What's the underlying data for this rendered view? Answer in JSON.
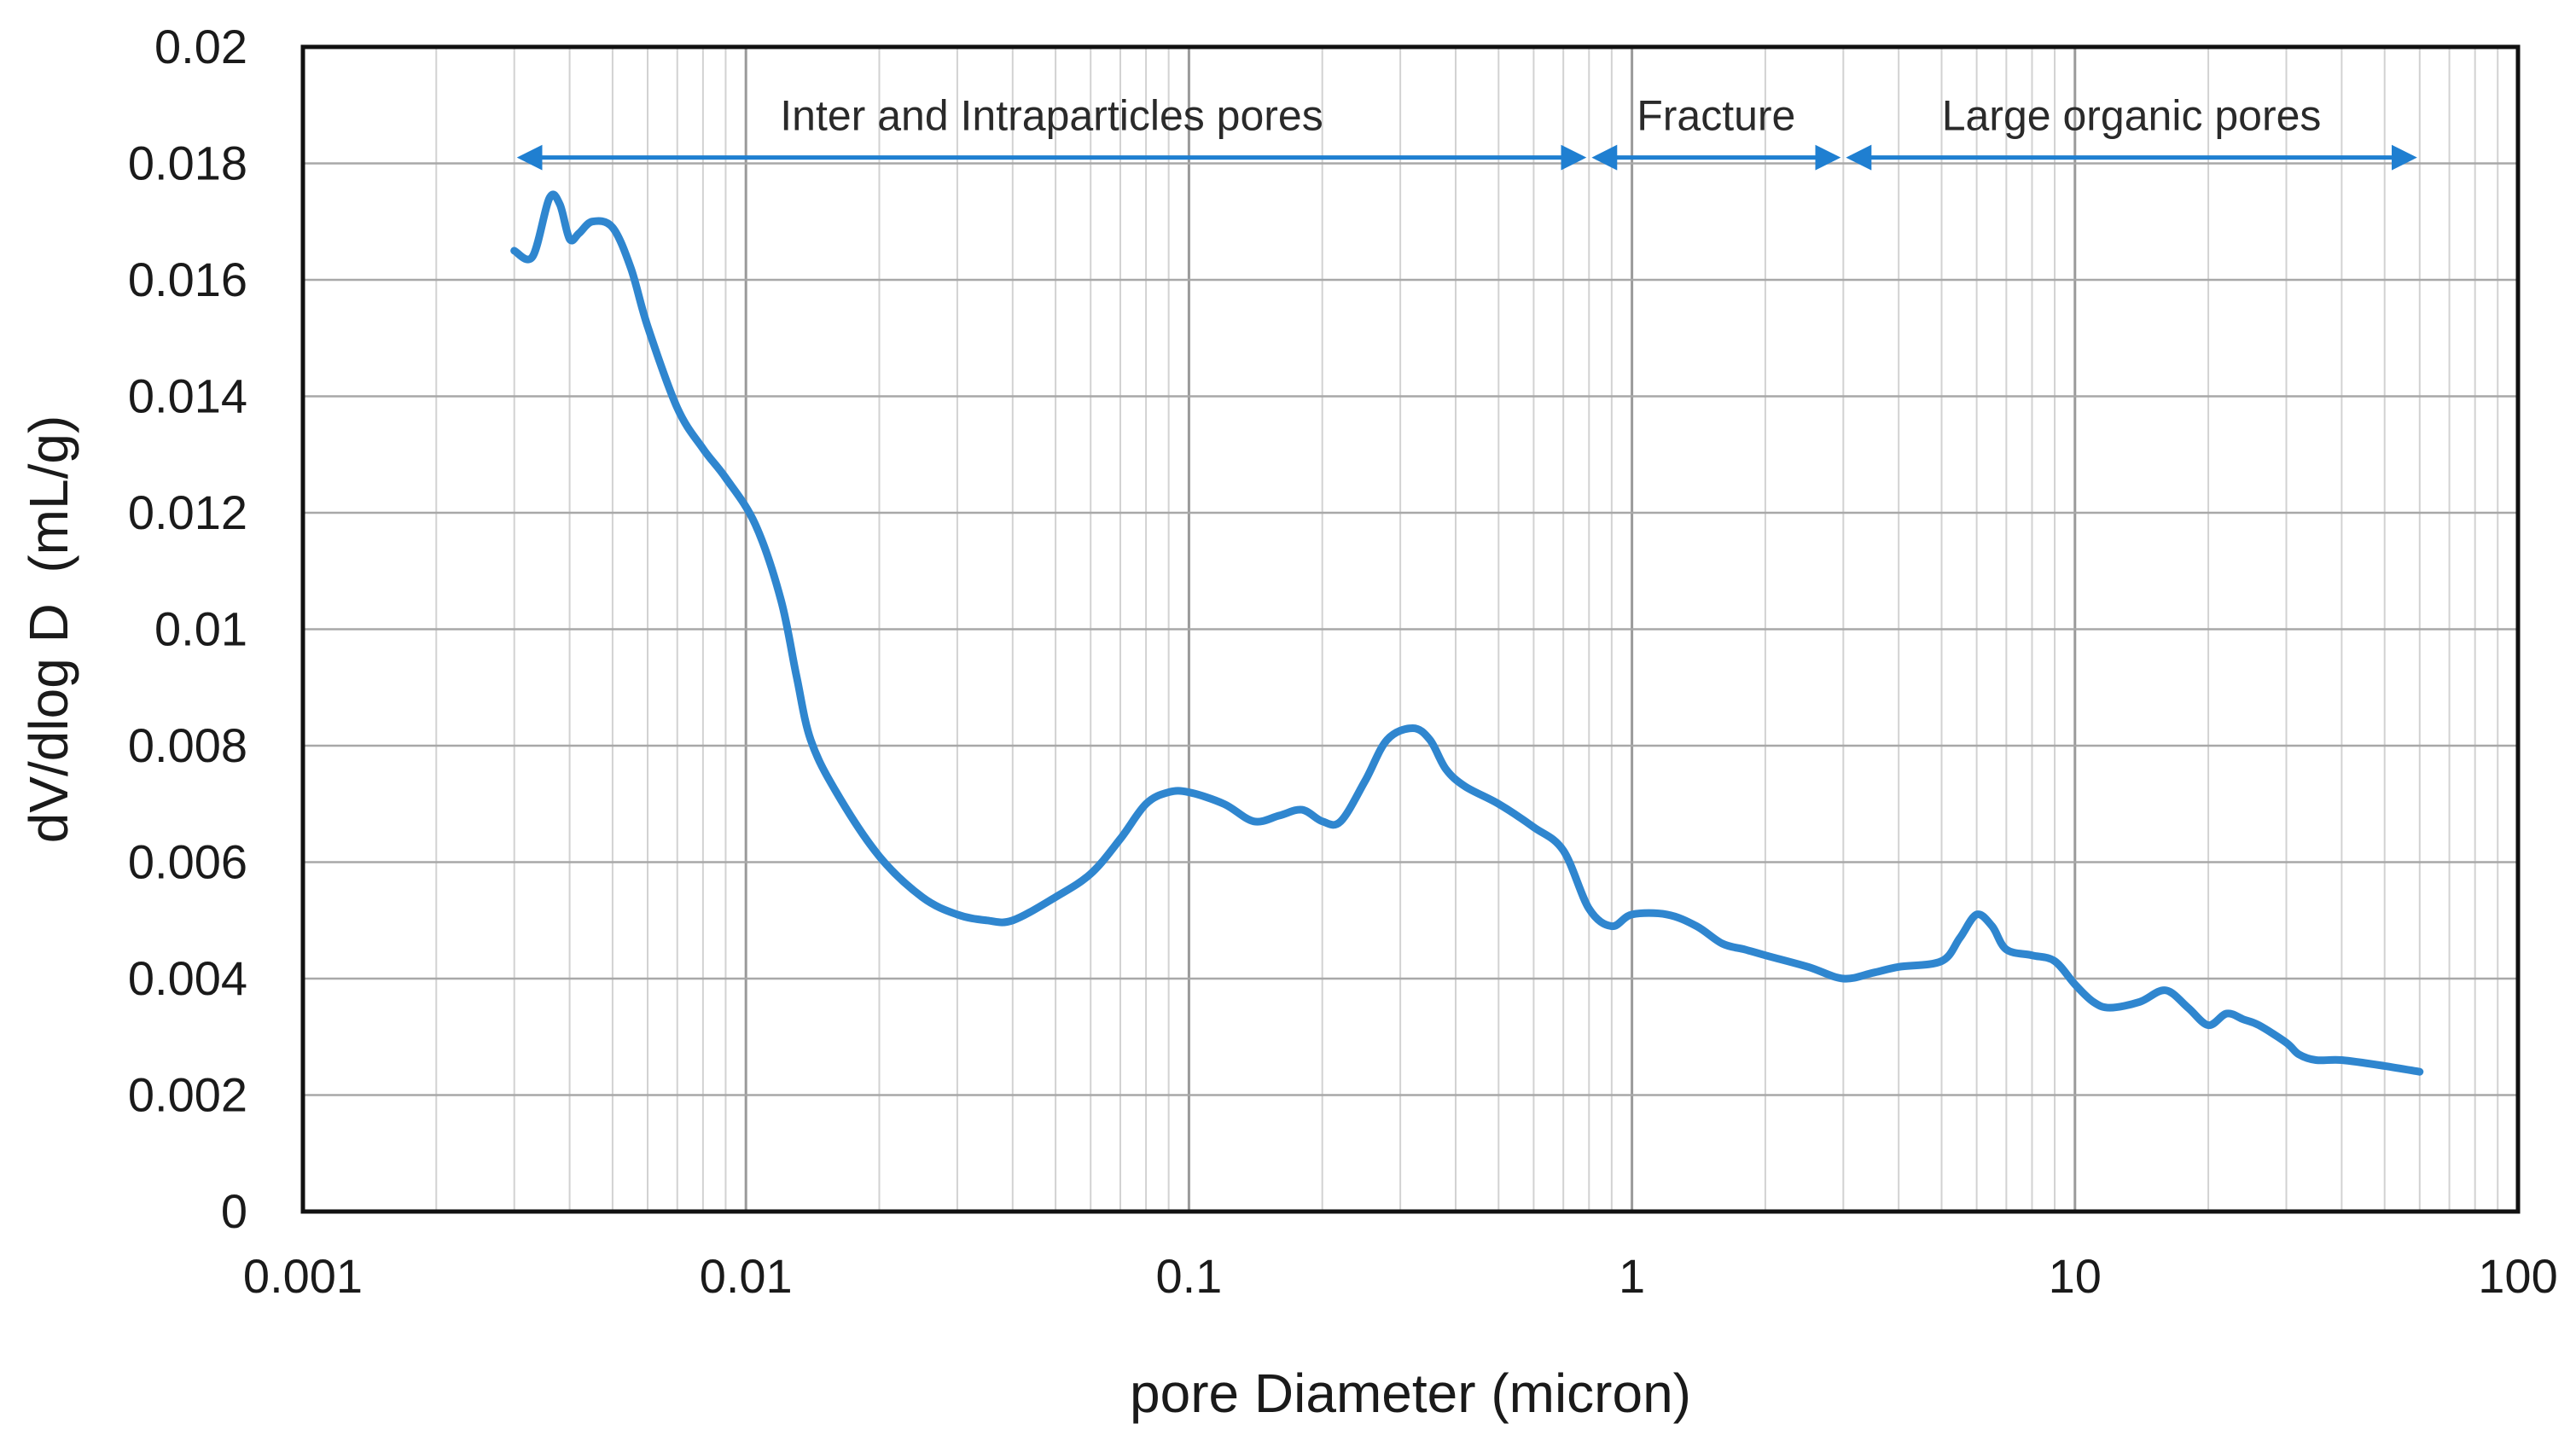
{
  "chart_data": {
    "type": "line",
    "title": "",
    "xlabel": "pore Diameter (micron)",
    "ylabel": "dV/dlog D  (mL/g)",
    "x_scale": "log",
    "xlim": [
      0.001,
      100
    ],
    "ylim": [
      0,
      0.02
    ],
    "x_ticks": [
      "0.001",
      "0.01",
      "0.1",
      "1",
      "10",
      "100"
    ],
    "y_ticks": [
      "0",
      "0.002",
      "0.004",
      "0.006",
      "0.008",
      "0.01",
      "0.012",
      "0.014",
      "0.016",
      "0.018",
      "0.02"
    ],
    "grid": true,
    "series": [
      {
        "name": "",
        "color": "#2f86cf",
        "x": [
          0.003,
          0.0033,
          0.0036,
          0.0038,
          0.004,
          0.0042,
          0.0045,
          0.005,
          0.0055,
          0.006,
          0.007,
          0.008,
          0.009,
          0.0105,
          0.012,
          0.013,
          0.014,
          0.016,
          0.02,
          0.025,
          0.03,
          0.035,
          0.04,
          0.05,
          0.06,
          0.07,
          0.08,
          0.09,
          0.1,
          0.12,
          0.14,
          0.16,
          0.18,
          0.2,
          0.22,
          0.25,
          0.28,
          0.32,
          0.35,
          0.38,
          0.42,
          0.5,
          0.6,
          0.7,
          0.8,
          0.9,
          1.0,
          1.2,
          1.4,
          1.6,
          1.8,
          2.0,
          2.5,
          3.0,
          3.5,
          4.0,
          5.0,
          5.5,
          6.0,
          6.5,
          7.0,
          8.0,
          9.0,
          10.0,
          11.0,
          12.0,
          14.0,
          16.0,
          18.0,
          20.0,
          22.0,
          24.0,
          26.0,
          30.0,
          32.0,
          35.0,
          40.0,
          50.0,
          60.0
        ],
        "y": [
          0.0165,
          0.0164,
          0.0174,
          0.0173,
          0.0167,
          0.0168,
          0.017,
          0.0169,
          0.0162,
          0.0152,
          0.0138,
          0.0131,
          0.0126,
          0.0118,
          0.0105,
          0.0092,
          0.0081,
          0.0072,
          0.0061,
          0.0054,
          0.0051,
          0.005,
          0.005,
          0.0054,
          0.0058,
          0.0064,
          0.007,
          0.0072,
          0.0072,
          0.007,
          0.0067,
          0.0068,
          0.0069,
          0.0067,
          0.0067,
          0.0074,
          0.0081,
          0.0083,
          0.0081,
          0.0076,
          0.0073,
          0.007,
          0.0066,
          0.0062,
          0.0052,
          0.0049,
          0.0051,
          0.0051,
          0.0049,
          0.0046,
          0.0045,
          0.0044,
          0.0042,
          0.004,
          0.0041,
          0.0042,
          0.0043,
          0.0047,
          0.0051,
          0.0049,
          0.0045,
          0.0044,
          0.0043,
          0.0039,
          0.0036,
          0.0035,
          0.0036,
          0.0038,
          0.0035,
          0.0032,
          0.0034,
          0.0033,
          0.0032,
          0.0029,
          0.0027,
          0.0026,
          0.0026,
          0.0025,
          0.0024
        ]
      }
    ],
    "annotations": [
      {
        "text": "Inter and Intraparticles pores",
        "x_start": 0.003,
        "x_end": 0.8,
        "y": 0.0181
      },
      {
        "text": "Fracture",
        "x_start": 0.8,
        "x_end": 3.0,
        "y": 0.0181
      },
      {
        "text": "Large organic pores",
        "x_start": 3.0,
        "x_end": 60.0,
        "y": 0.0181
      }
    ],
    "annotation_color": "#1f7fd1"
  }
}
